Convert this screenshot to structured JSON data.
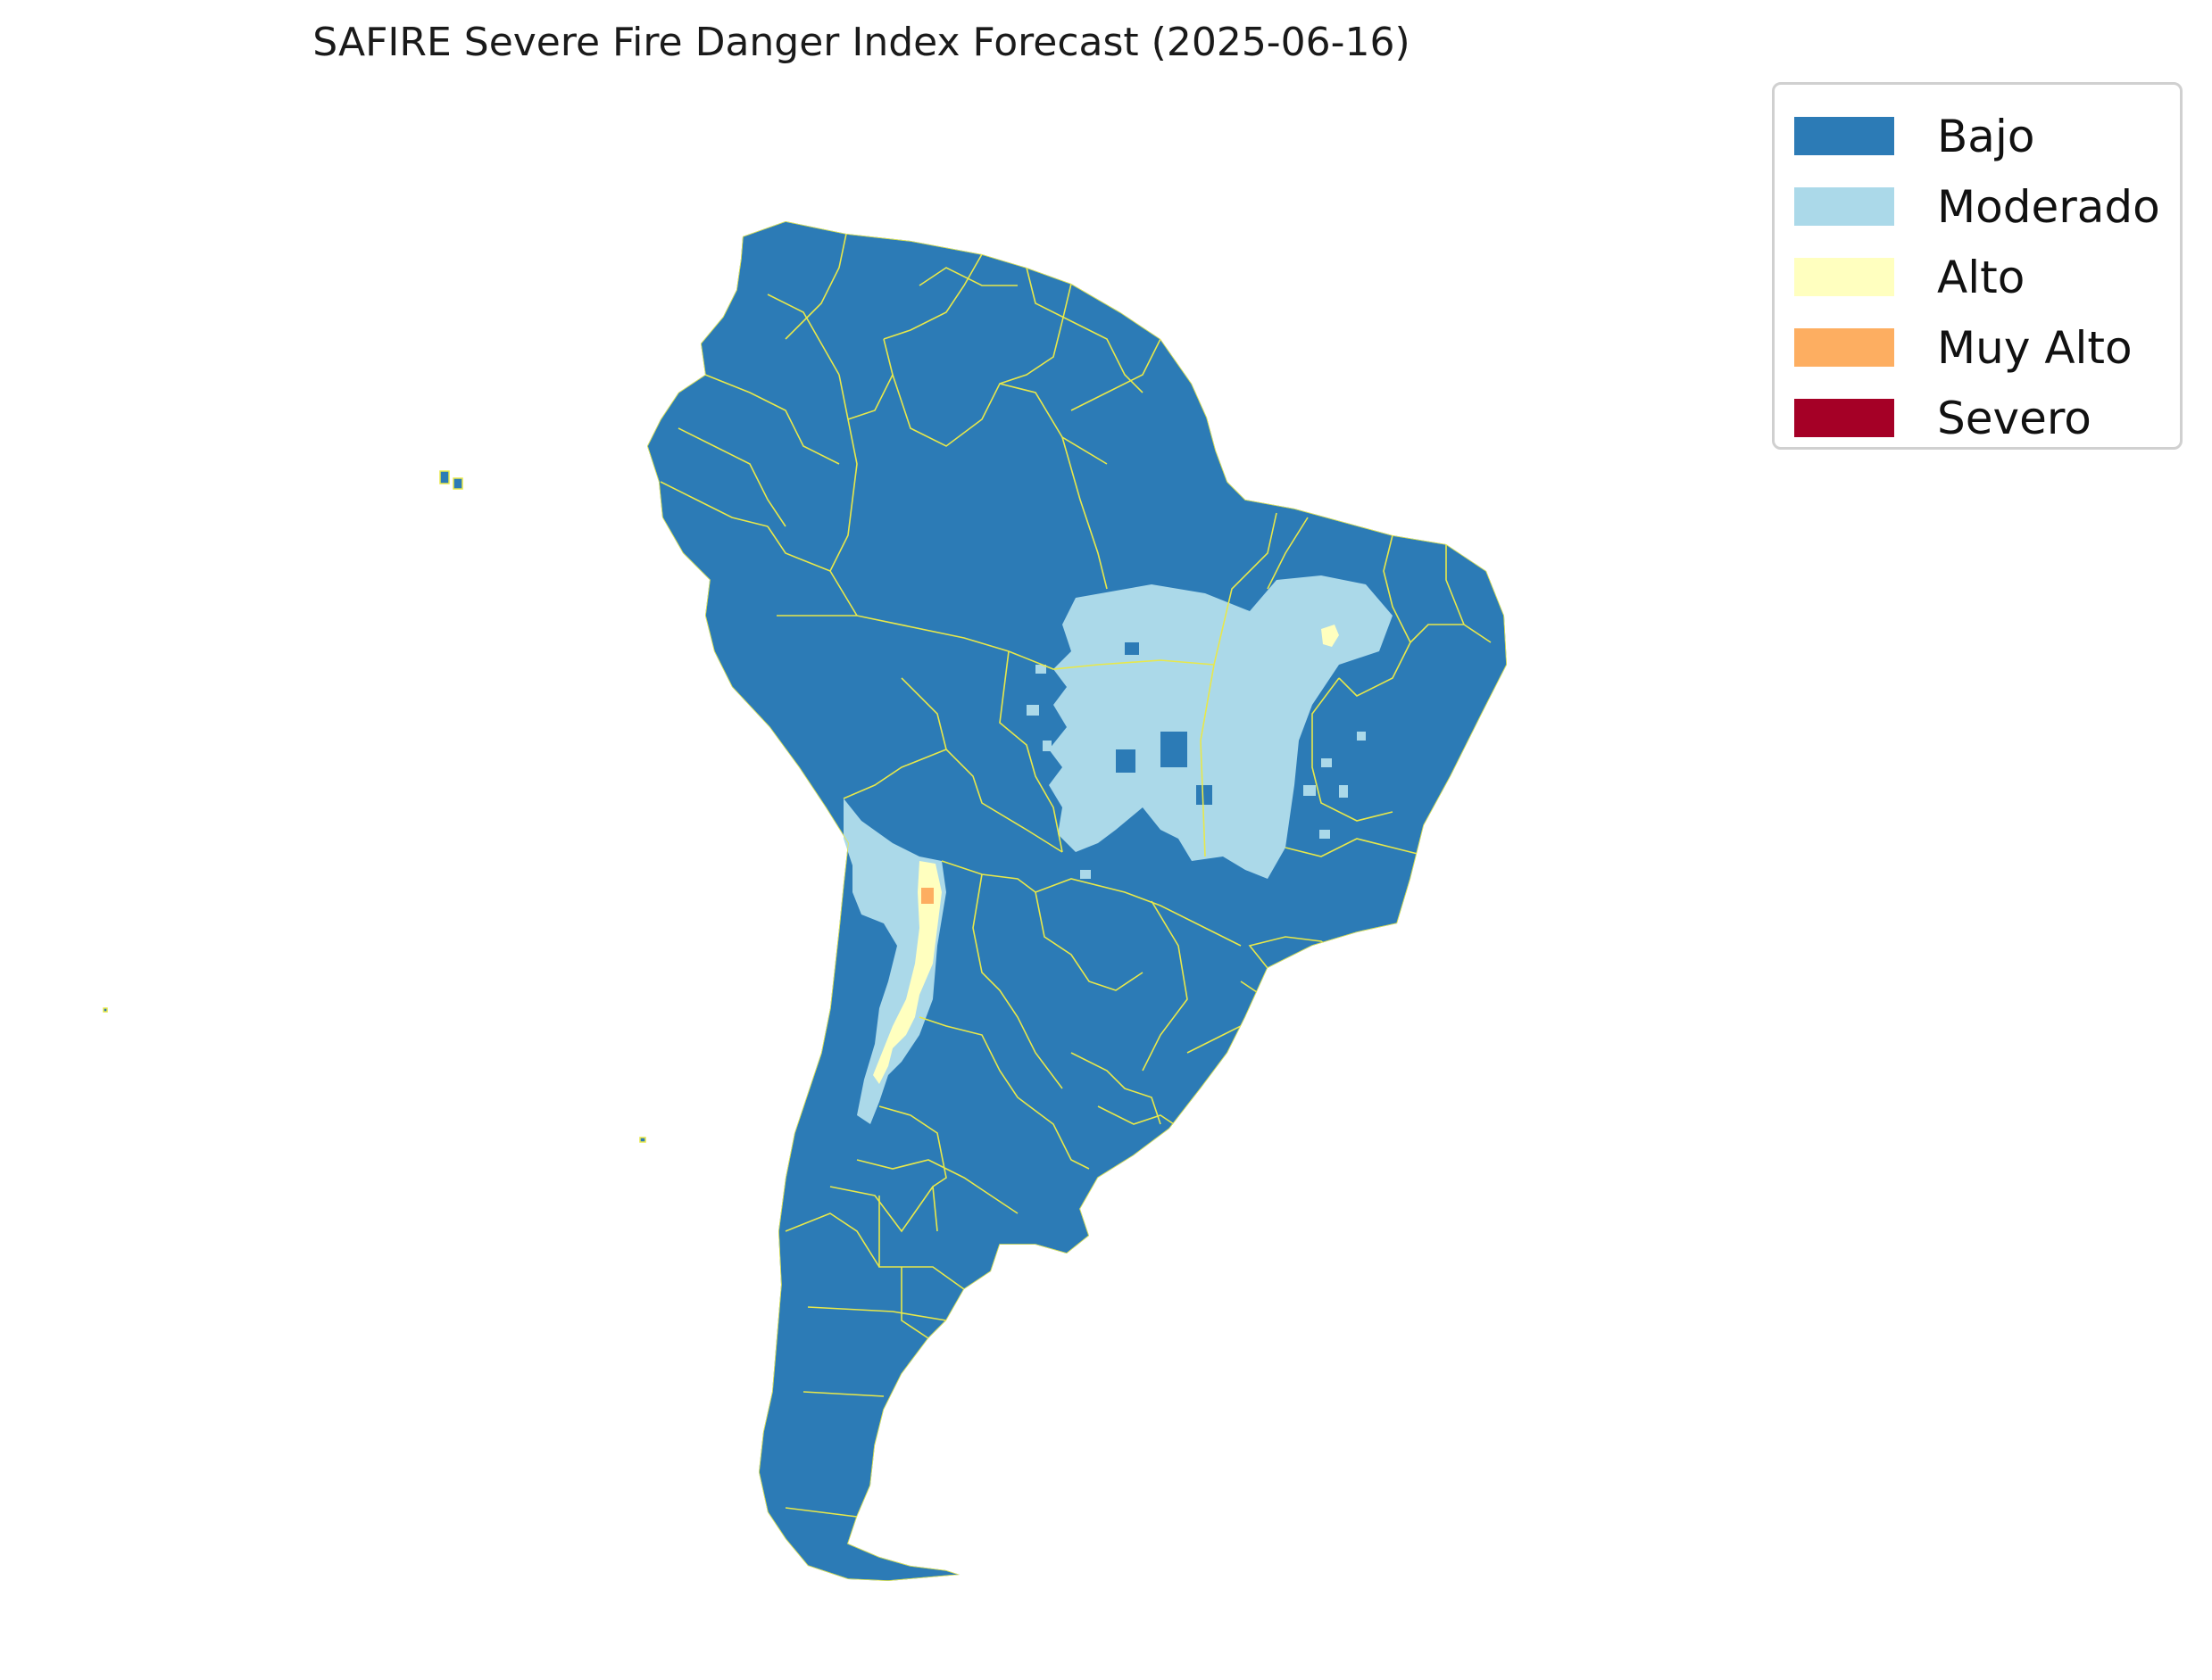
{
  "title": "SAFIRE Severe Fire Danger Index Forecast (2025-06-16)",
  "legend": {
    "items": [
      {
        "label": "Bajo",
        "color": "#2c7bb6"
      },
      {
        "label": "Moderado",
        "color": "#abd9e9"
      },
      {
        "label": "Alto",
        "color": "#ffffbf"
      },
      {
        "label": "Muy Alto",
        "color": "#fdae61"
      },
      {
        "label": "Severo",
        "color": "#a50026"
      }
    ]
  },
  "colors": {
    "boundary": "#e8e84a"
  }
}
